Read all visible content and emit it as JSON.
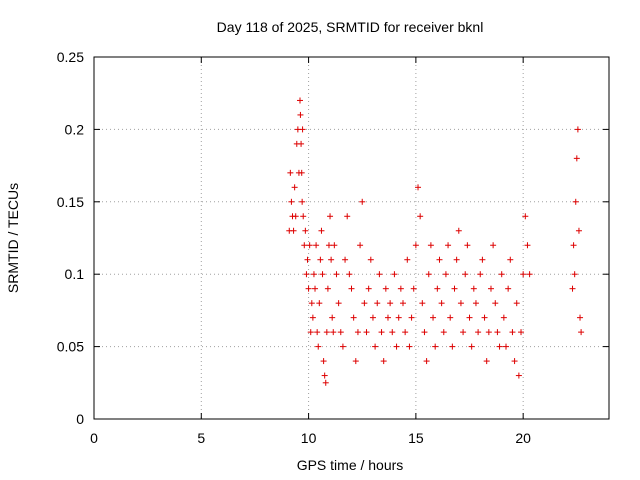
{
  "chart_data": {
    "type": "scatter",
    "title": "Day 118 of 2025, SRMTID for receiver bknl",
    "xlabel": "GPS time / hours",
    "ylabel": "SRMTID / TECUs",
    "xlim": [
      0,
      24
    ],
    "ylim": [
      0,
      0.25
    ],
    "x_ticks": [
      0,
      5,
      10,
      15,
      20
    ],
    "x_tick_labels": [
      "0",
      "5",
      "10",
      "15",
      "20"
    ],
    "y_ticks": [
      0,
      0.05,
      0.1,
      0.15,
      0.2,
      0.25
    ],
    "y_tick_labels": [
      "0",
      "0.05",
      "0.1",
      "0.15",
      "0.2",
      "0.25"
    ],
    "grid": true,
    "marker": "plus",
    "color": "#dd0000",
    "series": [
      {
        "x": [
          9.1,
          9.15,
          9.2,
          9.25,
          9.3,
          9.35,
          9.4,
          9.45,
          9.5,
          9.55,
          9.6,
          9.62,
          9.65,
          9.68,
          9.7,
          9.72,
          9.75,
          9.8,
          9.85,
          9.9,
          9.95,
          10.0,
          10.05,
          10.1,
          10.15,
          10.2,
          10.25,
          10.3,
          10.35,
          10.4,
          10.45,
          10.5,
          10.55,
          10.6,
          10.65,
          10.7,
          10.75,
          10.8,
          10.85,
          10.9,
          10.95,
          11.0,
          11.05,
          11.1,
          11.15,
          11.2,
          11.3,
          11.4,
          11.5,
          11.6,
          11.7,
          11.8,
          11.9,
          12.0,
          12.1,
          12.2,
          12.3,
          12.4,
          12.5,
          12.6,
          12.7,
          12.8,
          12.9,
          13.0,
          13.1,
          13.2,
          13.3,
          13.4,
          13.5,
          13.6,
          13.7,
          13.8,
          13.9,
          14.0,
          14.1,
          14.2,
          14.3,
          14.4,
          14.5,
          14.6,
          14.7,
          14.8,
          14.9,
          15.0,
          15.1,
          15.2,
          15.3,
          15.4,
          15.5,
          15.6,
          15.7,
          15.8,
          15.9,
          16.0,
          16.1,
          16.2,
          16.3,
          16.4,
          16.5,
          16.6,
          16.7,
          16.8,
          16.9,
          17.0,
          17.1,
          17.2,
          17.3,
          17.4,
          17.5,
          17.6,
          17.7,
          17.8,
          17.9,
          18.0,
          18.1,
          18.2,
          18.3,
          18.4,
          18.5,
          18.6,
          18.7,
          18.8,
          18.9,
          19.0,
          19.1,
          19.2,
          19.3,
          19.4,
          19.5,
          19.6,
          19.7,
          19.8,
          19.9,
          20.0,
          20.1,
          20.2,
          20.3,
          22.3,
          22.35,
          22.4,
          22.45,
          22.5,
          22.55,
          22.6,
          22.65,
          22.7
        ],
        "y": [
          0.13,
          0.17,
          0.15,
          0.14,
          0.13,
          0.16,
          0.14,
          0.19,
          0.2,
          0.17,
          0.22,
          0.21,
          0.19,
          0.17,
          0.15,
          0.2,
          0.14,
          0.12,
          0.13,
          0.1,
          0.11,
          0.09,
          0.12,
          0.06,
          0.08,
          0.07,
          0.1,
          0.09,
          0.12,
          0.06,
          0.05,
          0.08,
          0.11,
          0.13,
          0.1,
          0.04,
          0.03,
          0.025,
          0.06,
          0.09,
          0.12,
          0.14,
          0.11,
          0.07,
          0.06,
          0.12,
          0.1,
          0.08,
          0.06,
          0.05,
          0.11,
          0.14,
          0.1,
          0.09,
          0.07,
          0.04,
          0.06,
          0.12,
          0.15,
          0.08,
          0.06,
          0.09,
          0.11,
          0.07,
          0.05,
          0.08,
          0.1,
          0.06,
          0.04,
          0.09,
          0.07,
          0.08,
          0.06,
          0.1,
          0.05,
          0.07,
          0.09,
          0.08,
          0.06,
          0.11,
          0.05,
          0.07,
          0.09,
          0.12,
          0.16,
          0.14,
          0.08,
          0.06,
          0.04,
          0.1,
          0.12,
          0.07,
          0.05,
          0.09,
          0.11,
          0.08,
          0.06,
          0.1,
          0.12,
          0.07,
          0.05,
          0.09,
          0.11,
          0.13,
          0.08,
          0.06,
          0.1,
          0.12,
          0.07,
          0.05,
          0.09,
          0.08,
          0.06,
          0.1,
          0.11,
          0.07,
          0.04,
          0.06,
          0.09,
          0.12,
          0.08,
          0.06,
          0.05,
          0.1,
          0.07,
          0.05,
          0.09,
          0.11,
          0.06,
          0.04,
          0.08,
          0.03,
          0.06,
          0.1,
          0.14,
          0.12,
          0.1,
          0.09,
          0.12,
          0.1,
          0.15,
          0.18,
          0.2,
          0.13,
          0.07,
          0.06
        ]
      }
    ]
  }
}
